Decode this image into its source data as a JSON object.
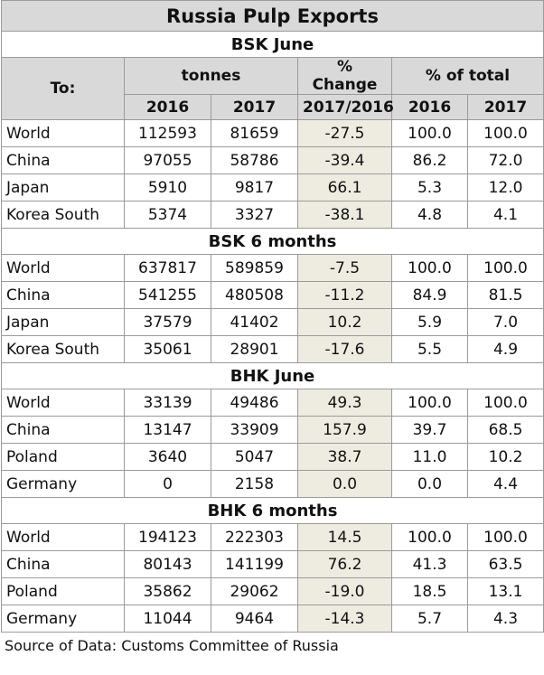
{
  "title": "Russia Pulp Exports",
  "headers": {
    "to": "To:",
    "tonnes": "tonnes",
    "pct_change": "% Change",
    "pct_total": "% of total",
    "y2016": "2016",
    "y2017": "2017",
    "change_period": "2017/2016"
  },
  "sections": [
    {
      "name": "BSK June",
      "rows": [
        {
          "dest": "World",
          "t2016": "112593",
          "t2017": "81659",
          "chg": "-27.5",
          "p2016": "100.0",
          "p2017": "100.0"
        },
        {
          "dest": "China",
          "t2016": "97055",
          "t2017": "58786",
          "chg": "-39.4",
          "p2016": "86.2",
          "p2017": "72.0"
        },
        {
          "dest": "Japan",
          "t2016": "5910",
          "t2017": "9817",
          "chg": "66.1",
          "p2016": "5.3",
          "p2017": "12.0"
        },
        {
          "dest": "Korea South",
          "t2016": "5374",
          "t2017": "3327",
          "chg": "-38.1",
          "p2016": "4.8",
          "p2017": "4.1"
        }
      ]
    },
    {
      "name": "BSK 6 months",
      "rows": [
        {
          "dest": "World",
          "t2016": "637817",
          "t2017": "589859",
          "chg": "-7.5",
          "p2016": "100.0",
          "p2017": "100.0"
        },
        {
          "dest": "China",
          "t2016": "541255",
          "t2017": "480508",
          "chg": "-11.2",
          "p2016": "84.9",
          "p2017": "81.5"
        },
        {
          "dest": "Japan",
          "t2016": "37579",
          "t2017": "41402",
          "chg": "10.2",
          "p2016": "5.9",
          "p2017": "7.0"
        },
        {
          "dest": "Korea South",
          "t2016": "35061",
          "t2017": "28901",
          "chg": "-17.6",
          "p2016": "5.5",
          "p2017": "4.9"
        }
      ]
    },
    {
      "name": "BHK June",
      "rows": [
        {
          "dest": "World",
          "t2016": "33139",
          "t2017": "49486",
          "chg": "49.3",
          "p2016": "100.0",
          "p2017": "100.0"
        },
        {
          "dest": "China",
          "t2016": "13147",
          "t2017": "33909",
          "chg": "157.9",
          "p2016": "39.7",
          "p2017": "68.5"
        },
        {
          "dest": "Poland",
          "t2016": "3640",
          "t2017": "5047",
          "chg": "38.7",
          "p2016": "11.0",
          "p2017": "10.2"
        },
        {
          "dest": "Germany",
          "t2016": "0",
          "t2017": "2158",
          "chg": "0.0",
          "p2016": "0.0",
          "p2017": "4.4"
        }
      ]
    },
    {
      "name": "BHK 6 months",
      "rows": [
        {
          "dest": "World",
          "t2016": "194123",
          "t2017": "222303",
          "chg": "14.5",
          "p2016": "100.0",
          "p2017": "100.0"
        },
        {
          "dest": "China",
          "t2016": "80143",
          "t2017": "141199",
          "chg": "76.2",
          "p2016": "41.3",
          "p2017": "63.5"
        },
        {
          "dest": "Poland",
          "t2016": "35862",
          "t2017": "29062",
          "chg": "-19.0",
          "p2016": "18.5",
          "p2017": "13.1"
        },
        {
          "dest": "Germany",
          "t2016": "11044",
          "t2017": "9464",
          "chg": "-14.3",
          "p2016": "5.7",
          "p2017": "4.3"
        }
      ]
    }
  ],
  "source": "Source of Data: Customs Committee of Russia"
}
